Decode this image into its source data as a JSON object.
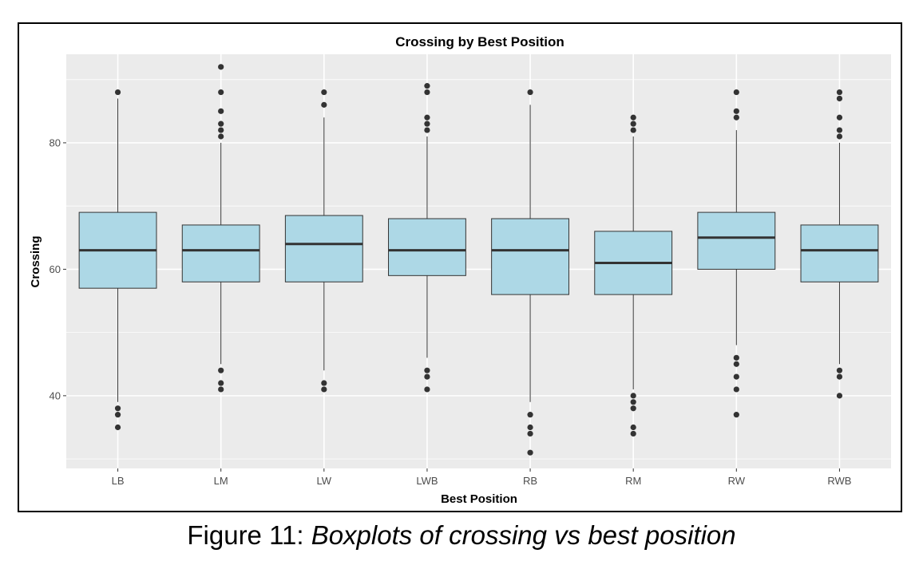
{
  "caption": {
    "prefix": "Figure 11: ",
    "italic": "Boxplots of crossing vs best position"
  },
  "colors": {
    "panel": "#ebebeb",
    "grid_major": "#ffffff",
    "box_fill": "#add8e6",
    "box_line": "#333333",
    "outlier": "#333333"
  },
  "chart_data": {
    "type": "boxplot",
    "title": "Crossing by Best Position",
    "xlabel": "Best Position",
    "ylabel": "Crossing",
    "ylim": [
      28.5,
      94
    ],
    "yticks": [
      40,
      60,
      80
    ],
    "grid": true,
    "categories": [
      "LB",
      "LM",
      "LW",
      "LWB",
      "RB",
      "RM",
      "RW",
      "RWB"
    ],
    "boxes": [
      {
        "category": "LB",
        "whisker_low": 39,
        "q1": 57,
        "median": 63,
        "q3": 69,
        "whisker_high": 87,
        "outliers": [
          35,
          37,
          38,
          88
        ]
      },
      {
        "category": "LM",
        "whisker_low": 45,
        "q1": 58,
        "median": 63,
        "q3": 67,
        "whisker_high": 80,
        "outliers": [
          41,
          42,
          44,
          81,
          82,
          83,
          85,
          88,
          92
        ]
      },
      {
        "category": "LW",
        "whisker_low": 44,
        "q1": 58,
        "median": 64,
        "q3": 68.5,
        "whisker_high": 84,
        "outliers": [
          41,
          42,
          86,
          88
        ]
      },
      {
        "category": "LWB",
        "whisker_low": 46,
        "q1": 59,
        "median": 63,
        "q3": 68,
        "whisker_high": 81,
        "outliers": [
          41,
          43,
          44,
          82,
          83,
          84,
          88,
          89
        ]
      },
      {
        "category": "RB",
        "whisker_low": 39,
        "q1": 56,
        "median": 63,
        "q3": 68,
        "whisker_high": 86,
        "outliers": [
          31,
          34,
          35,
          37,
          88
        ]
      },
      {
        "category": "RM",
        "whisker_low": 41,
        "q1": 56,
        "median": 61,
        "q3": 66,
        "whisker_high": 81,
        "outliers": [
          34,
          35,
          38,
          39,
          40,
          82,
          83,
          84
        ]
      },
      {
        "category": "RW",
        "whisker_low": 48,
        "q1": 60,
        "median": 65,
        "q3": 69,
        "whisker_high": 82,
        "outliers": [
          37,
          41,
          43,
          45,
          46,
          84,
          85,
          88
        ]
      },
      {
        "category": "RWB",
        "whisker_low": 45,
        "q1": 58,
        "median": 63,
        "q3": 67,
        "whisker_high": 80,
        "outliers": [
          40,
          43,
          44,
          81,
          82,
          84,
          87,
          88
        ]
      }
    ]
  }
}
